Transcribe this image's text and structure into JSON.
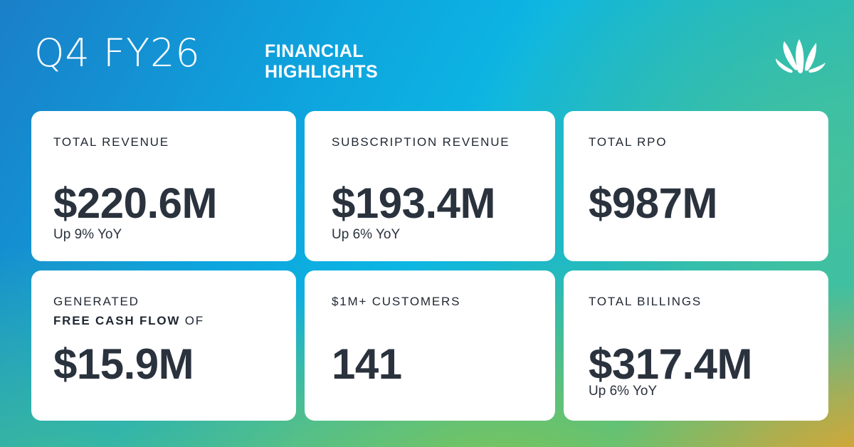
{
  "header": {
    "title": "Q4 FY26",
    "subtitle_line1": "FINANCIAL",
    "subtitle_line2": "HIGHLIGHTS",
    "logo_icon": "splash-logo-icon"
  },
  "cards": [
    {
      "label": "TOTAL REVENUE",
      "value": "$220.6M",
      "sub": "Up 9% YoY"
    },
    {
      "label": "SUBSCRIPTION REVENUE",
      "value": "$193.4M",
      "sub": "Up 6% YoY"
    },
    {
      "label": "TOTAL RPO",
      "value": "$987M",
      "sub": ""
    },
    {
      "label_line1": "GENERATED",
      "label_bold": "FREE CASH FLOW",
      "label_after": " OF",
      "value": "$15.9M",
      "sub": ""
    },
    {
      "label": "$1M+ CUSTOMERS",
      "value": "141",
      "sub": ""
    },
    {
      "label": "TOTAL BILLINGS",
      "value": "$317.4M",
      "sub": "Up 6% YoY"
    }
  ],
  "colors": {
    "card_background": "#ffffff",
    "text_dark": "#2a323d",
    "gradient_blue": "#0ea2dd",
    "gradient_green": "#8cc746",
    "gradient_orange": "#f7a01e"
  }
}
